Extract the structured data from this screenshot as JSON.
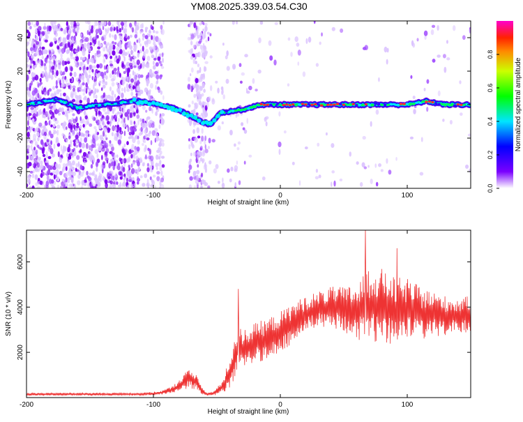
{
  "title": "YM08.2025.339.03.54.C30",
  "chart_data": [
    {
      "type": "heatmap",
      "xlabel": "Height of straight line (km)",
      "ylabel": "Frequency (Hz)",
      "xlim": [
        -200,
        150
      ],
      "ylim": [
        -50,
        50
      ],
      "xticks": [
        "-200",
        "-100",
        "0",
        "100"
      ],
      "xtick_values": [
        -200,
        -100,
        0,
        100
      ],
      "yticks": [
        "-40",
        "-20",
        "0",
        "20",
        "40"
      ],
      "ytick_values": [
        -40,
        -20,
        0,
        20,
        40
      ],
      "ridge": {
        "x": [
          -200,
          -185,
          -175,
          -160,
          -140,
          -115,
          -100,
          -85,
          -75,
          -62,
          -55,
          -48,
          -40,
          -30,
          -15,
          0,
          20,
          40,
          60,
          80,
          100,
          115,
          130,
          150
        ],
        "freq": [
          0,
          2,
          3,
          -2,
          0,
          2,
          1,
          -2,
          -5,
          -10,
          -12,
          -5,
          -4,
          -3,
          0,
          0,
          0,
          0,
          0,
          0,
          0,
          2,
          0,
          0
        ]
      },
      "colorbar": {
        "label": "Normalized spectral amplitude",
        "range": [
          0,
          1
        ],
        "ticks": [
          "0.0",
          "0.2",
          "0.4",
          "0.6",
          "0.8"
        ],
        "tick_values": [
          0,
          0.2,
          0.4,
          0.6,
          0.8
        ]
      }
    },
    {
      "type": "line",
      "xlabel": "Height of straight line (km)",
      "ylabel": "SNR (10 * v/v)",
      "xlim": [
        -200,
        150
      ],
      "ylim": [
        0,
        7400
      ],
      "xticks": [
        "-200",
        "-100",
        "0",
        "100"
      ],
      "xtick_values": [
        -200,
        -100,
        0,
        100
      ],
      "yticks": [
        "2000",
        "4000",
        "6000"
      ],
      "ytick_values": [
        2000,
        4000,
        6000
      ],
      "series": [
        {
          "name": "SNR",
          "color": "#ee3333",
          "envelope_x": [
            -200,
            -170,
            -140,
            -110,
            -95,
            -85,
            -78,
            -72,
            -66,
            -62,
            -58,
            -52,
            -45,
            -40,
            -35,
            -33,
            -30,
            -20,
            -10,
            0,
            10,
            20,
            30,
            40,
            50,
            60,
            70,
            80,
            90,
            100,
            110,
            120,
            130,
            140,
            150
          ],
          "envelope_mean": [
            150,
            150,
            150,
            150,
            200,
            350,
            600,
            850,
            700,
            300,
            150,
            200,
            500,
            1100,
            1800,
            2400,
            2100,
            2400,
            2600,
            2900,
            3300,
            3700,
            3900,
            4000,
            3900,
            3800,
            4000,
            4100,
            3800,
            3900,
            3700,
            3700,
            3600,
            3600,
            3700
          ],
          "envelope_spread": [
            60,
            60,
            60,
            60,
            80,
            150,
            300,
            450,
            400,
            150,
            60,
            100,
            300,
            700,
            900,
            1100,
            900,
            900,
            900,
            900,
            900,
            800,
            800,
            900,
            1000,
            1200,
            1800,
            1600,
            1500,
            1400,
            1200,
            1000,
            900,
            800,
            800
          ],
          "peaks": [
            {
              "x": -33,
              "y": 4800
            },
            {
              "x": 67,
              "y": 7400
            },
            {
              "x": 92,
              "y": 6600
            }
          ]
        }
      ]
    }
  ]
}
